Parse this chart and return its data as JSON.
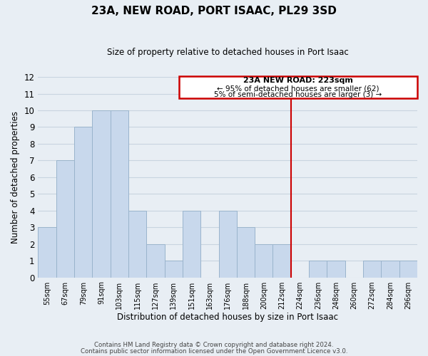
{
  "title": "23A, NEW ROAD, PORT ISAAC, PL29 3SD",
  "subtitle": "Size of property relative to detached houses in Port Isaac",
  "xlabel": "Distribution of detached houses by size in Port Isaac",
  "ylabel": "Number of detached properties",
  "bar_labels": [
    "55sqm",
    "67sqm",
    "79sqm",
    "91sqm",
    "103sqm",
    "115sqm",
    "127sqm",
    "139sqm",
    "151sqm",
    "163sqm",
    "176sqm",
    "188sqm",
    "200sqm",
    "212sqm",
    "224sqm",
    "236sqm",
    "248sqm",
    "260sqm",
    "272sqm",
    "284sqm",
    "296sqm"
  ],
  "bar_heights": [
    3,
    7,
    9,
    10,
    10,
    4,
    2,
    1,
    4,
    0,
    4,
    3,
    2,
    2,
    0,
    1,
    1,
    0,
    1,
    1,
    1
  ],
  "bar_color": "#c8d8ec",
  "bar_edge_color": "#9ab4cc",
  "ylim": [
    0,
    12
  ],
  "yticks": [
    0,
    1,
    2,
    3,
    4,
    5,
    6,
    7,
    8,
    9,
    10,
    11,
    12
  ],
  "marker_color": "#cc0000",
  "annotation_title": "23A NEW ROAD: 223sqm",
  "annotation_line1": "← 95% of detached houses are smaller (62)",
  "annotation_line2": "5% of semi-detached houses are larger (3) →",
  "annotation_box_color": "#ffffff",
  "annotation_box_edge": "#cc0000",
  "footer1": "Contains HM Land Registry data © Crown copyright and database right 2024.",
  "footer2": "Contains public sector information licensed under the Open Government Licence v3.0.",
  "grid_color": "#c8d4e0",
  "background_color": "#e8eef4"
}
